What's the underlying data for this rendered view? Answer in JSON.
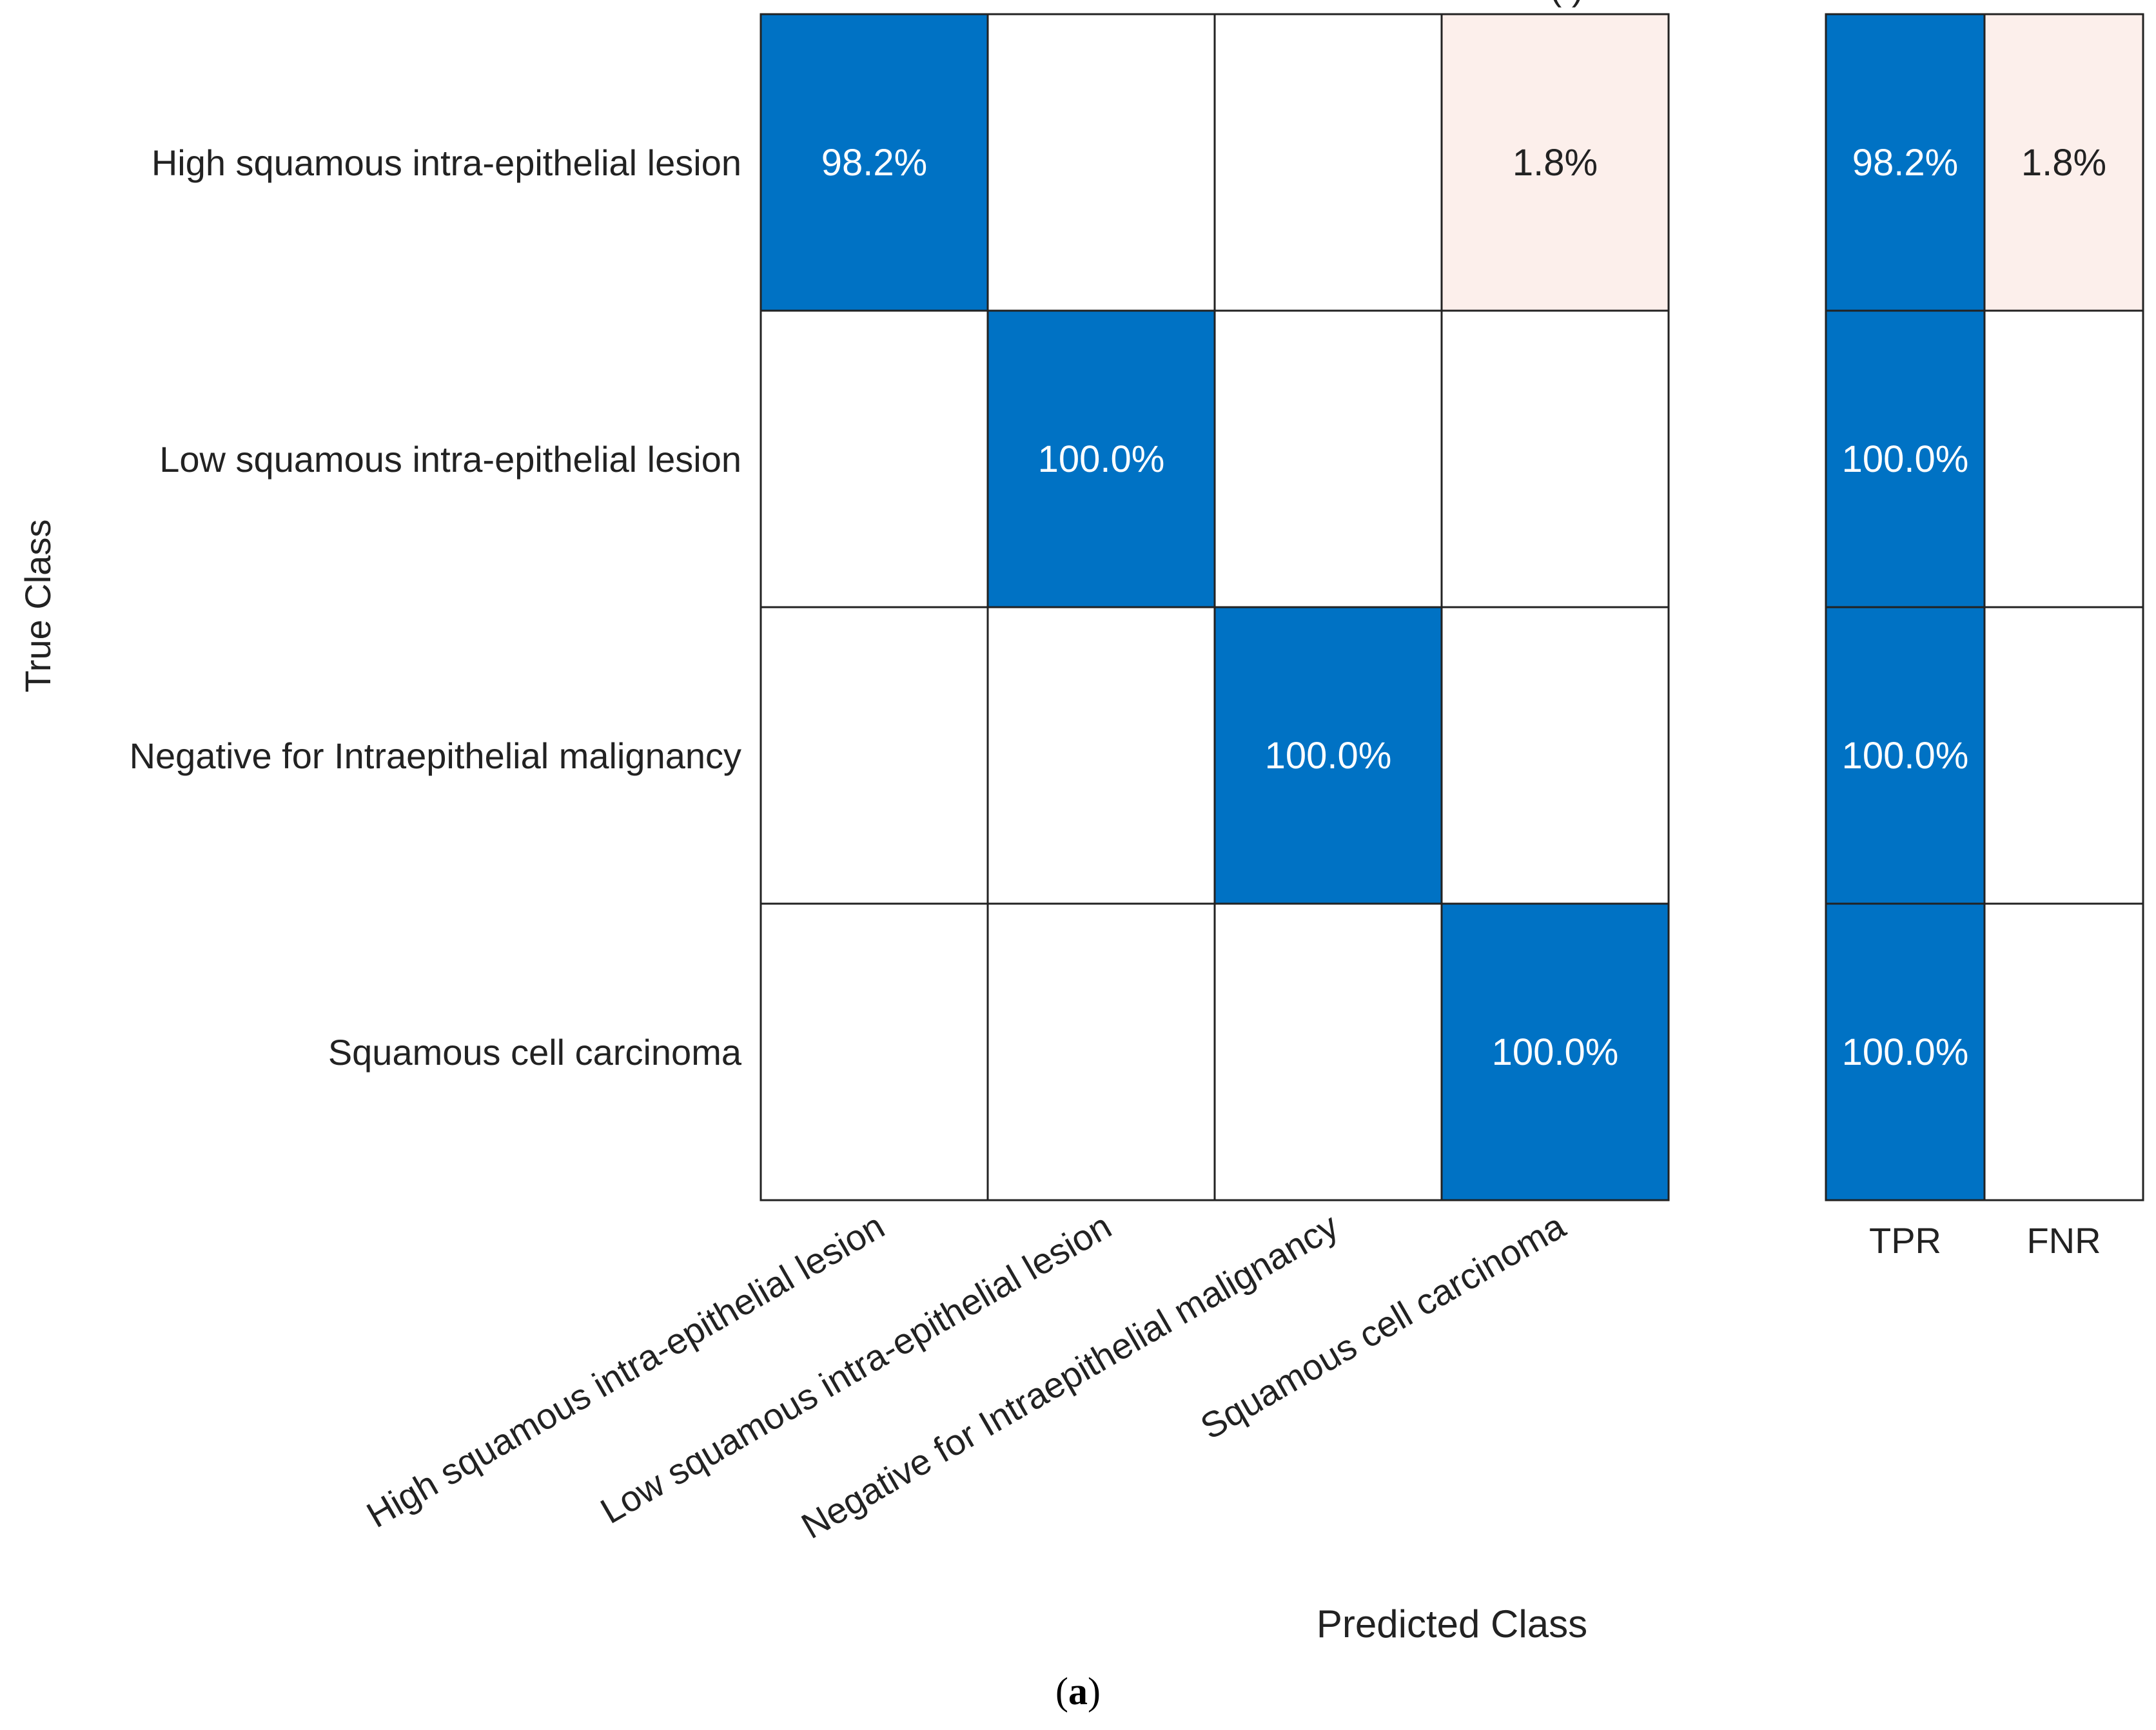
{
  "chart_data": {
    "type": "heatmap",
    "subtype": "confusion-matrix-row-normalized",
    "title_partial": "(             )",
    "xlabel": "Predicted Class",
    "ylabel": "True Class",
    "true_classes": [
      "High squamous intra-epithelial lesion",
      "Low squamous intra-epithelial lesion",
      "Negative for Intraepithelial malignancy",
      "Squamous cell carcinoma"
    ],
    "predicted_classes": [
      "High squamous intra-epithelial lesion",
      "Low squamous intra-epithelial lesion",
      "Negative for Intraepithelial malignancy",
      "Squamous cell carcinoma"
    ],
    "values_percent": [
      [
        98.2,
        null,
        null,
        1.8
      ],
      [
        null,
        100.0,
        null,
        null
      ],
      [
        null,
        null,
        100.0,
        null
      ],
      [
        null,
        null,
        null,
        100.0
      ]
    ],
    "summary_columns": [
      "TPR",
      "FNR"
    ],
    "summary_values_percent": [
      [
        98.2,
        1.8
      ],
      [
        100.0,
        null
      ],
      [
        100.0,
        null
      ],
      [
        100.0,
        null
      ]
    ],
    "colors": {
      "correct": "#0072c4",
      "incorrect": "#fcefeb",
      "empty": "#ffffff",
      "grid": "#222222",
      "text_on_dark": "#ffffff",
      "text_on_light": "#222222"
    }
  },
  "caption": {
    "open": "(",
    "letter": "a",
    "close": ")"
  }
}
